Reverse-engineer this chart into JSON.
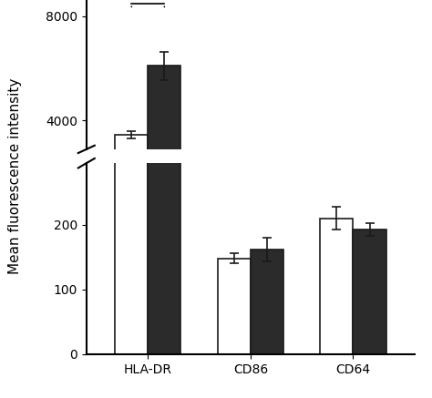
{
  "categories": [
    "HLA-DR",
    "CD86",
    "CD64"
  ],
  "white_values": [
    3450,
    148,
    210
  ],
  "black_values": [
    6100,
    162,
    193
  ],
  "white_errors": [
    130,
    8,
    18
  ],
  "black_errors": [
    550,
    18,
    10
  ],
  "bar_width": 0.32,
  "ylabel": "Mean fluorescence intensity",
  "yticks_upper": [
    4000,
    8000
  ],
  "yticks_lower": [
    0,
    100,
    200
  ],
  "upper_ylim": [
    2900,
    8700
  ],
  "lower_ylim": [
    0,
    295
  ],
  "significance_label": "**",
  "background_color": "#ffffff",
  "bar_color_white": "#ffffff",
  "bar_color_black": "#2b2b2b",
  "edge_color": "#1a1a1a",
  "tick_fontsize": 10,
  "label_fontsize": 11
}
